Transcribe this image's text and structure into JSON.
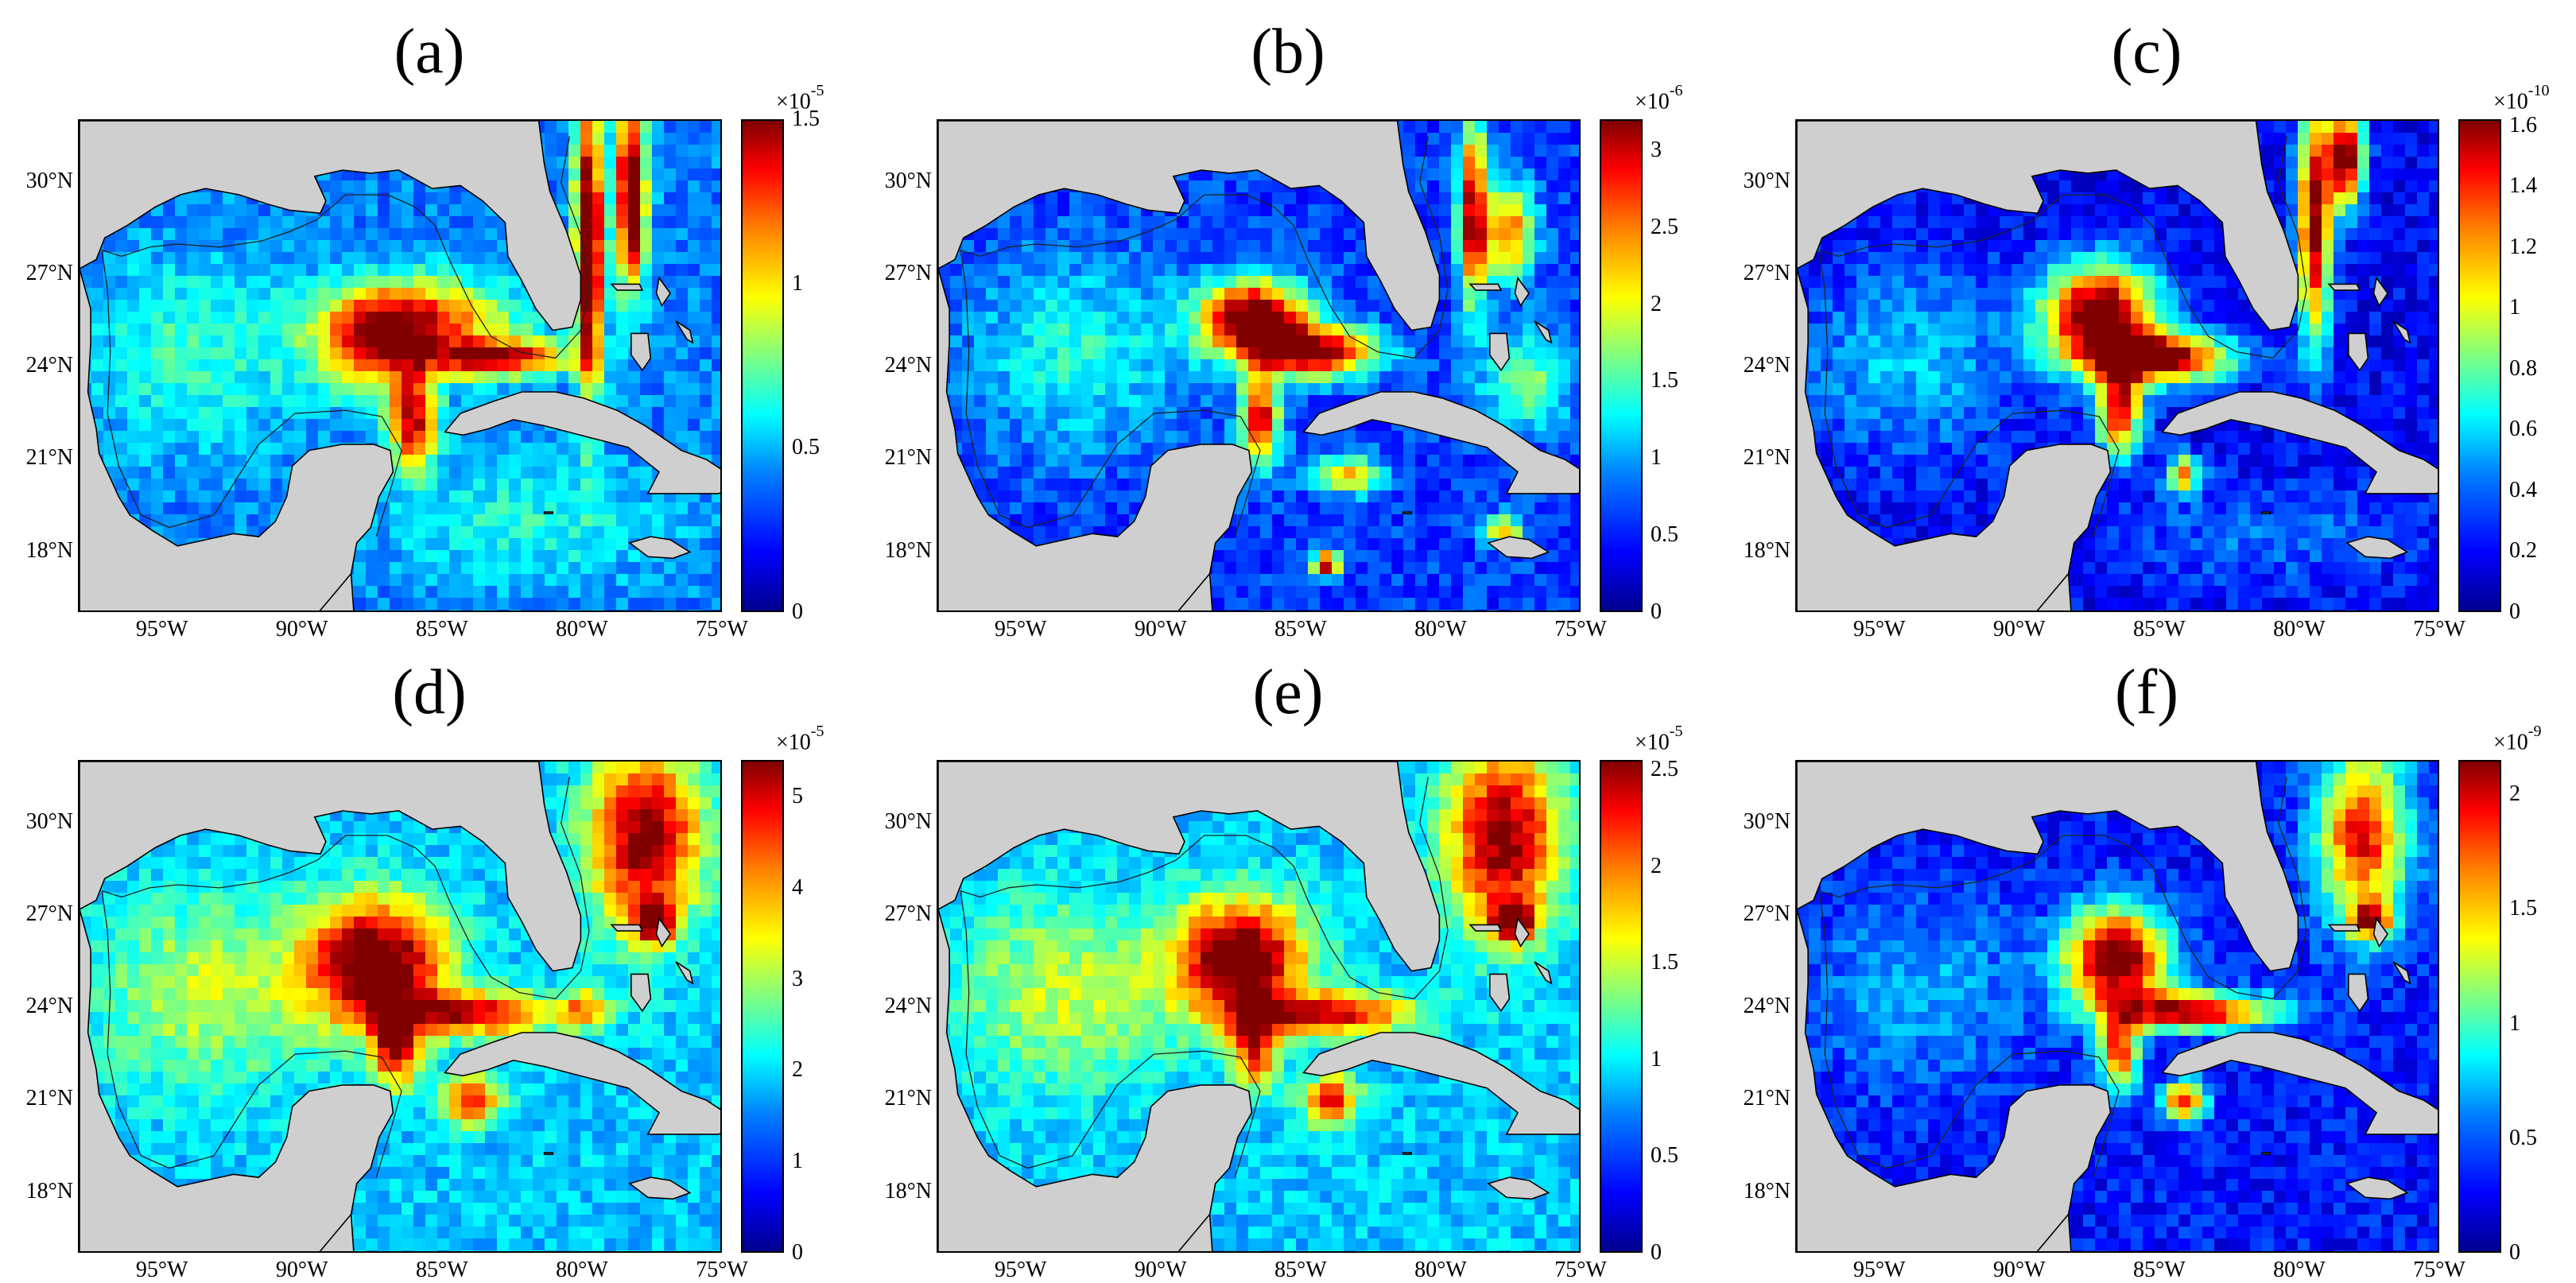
{
  "panels": [
    {
      "label": "(a)",
      "multiplier": "×10",
      "exponent": "-5",
      "cbar_ticks": [
        "1.5",
        "1",
        "0.5",
        "0"
      ],
      "cbar_max": 1.5
    },
    {
      "label": "(b)",
      "multiplier": "×10",
      "exponent": "-6",
      "cbar_ticks": [
        "3",
        "2.5",
        "2",
        "1.5",
        "1",
        "0.5",
        "0"
      ],
      "cbar_max": 3.2
    },
    {
      "label": "(c)",
      "multiplier": "×10",
      "exponent": "-10",
      "cbar_ticks": [
        "1.6",
        "1.4",
        "1.2",
        "1",
        "0.8",
        "0.6",
        "0.4",
        "0.2",
        "0"
      ],
      "cbar_max": 1.62
    },
    {
      "label": "(d)",
      "multiplier": "×10",
      "exponent": "-5",
      "cbar_ticks": [
        "5",
        "4",
        "3",
        "2",
        "1",
        "0"
      ],
      "cbar_max": 5.4
    },
    {
      "label": "(e)",
      "multiplier": "×10",
      "exponent": "-5",
      "cbar_ticks": [
        "2.5",
        "2",
        "1.5",
        "1",
        "0.5",
        "0"
      ],
      "cbar_max": 2.55
    },
    {
      "label": "(f)",
      "multiplier": "×10",
      "exponent": "-9",
      "cbar_ticks": [
        "2",
        "1.5",
        "1",
        "0.5",
        "0"
      ],
      "cbar_max": 2.15
    }
  ],
  "lat_ticks": [
    "30°N",
    "27°N",
    "24°N",
    "21°N",
    "18°N"
  ],
  "lon_ticks": [
    "95°W",
    "90°W",
    "85°W",
    "80°W",
    "75°W"
  ],
  "lat_values": [
    30,
    27,
    24,
    21,
    18
  ],
  "lon_values": [
    -95,
    -90,
    -85,
    -80,
    -75
  ],
  "extent": {
    "lon_min": -98,
    "lon_max": -75,
    "lat_min": 16,
    "lat_max": 32
  }
}
